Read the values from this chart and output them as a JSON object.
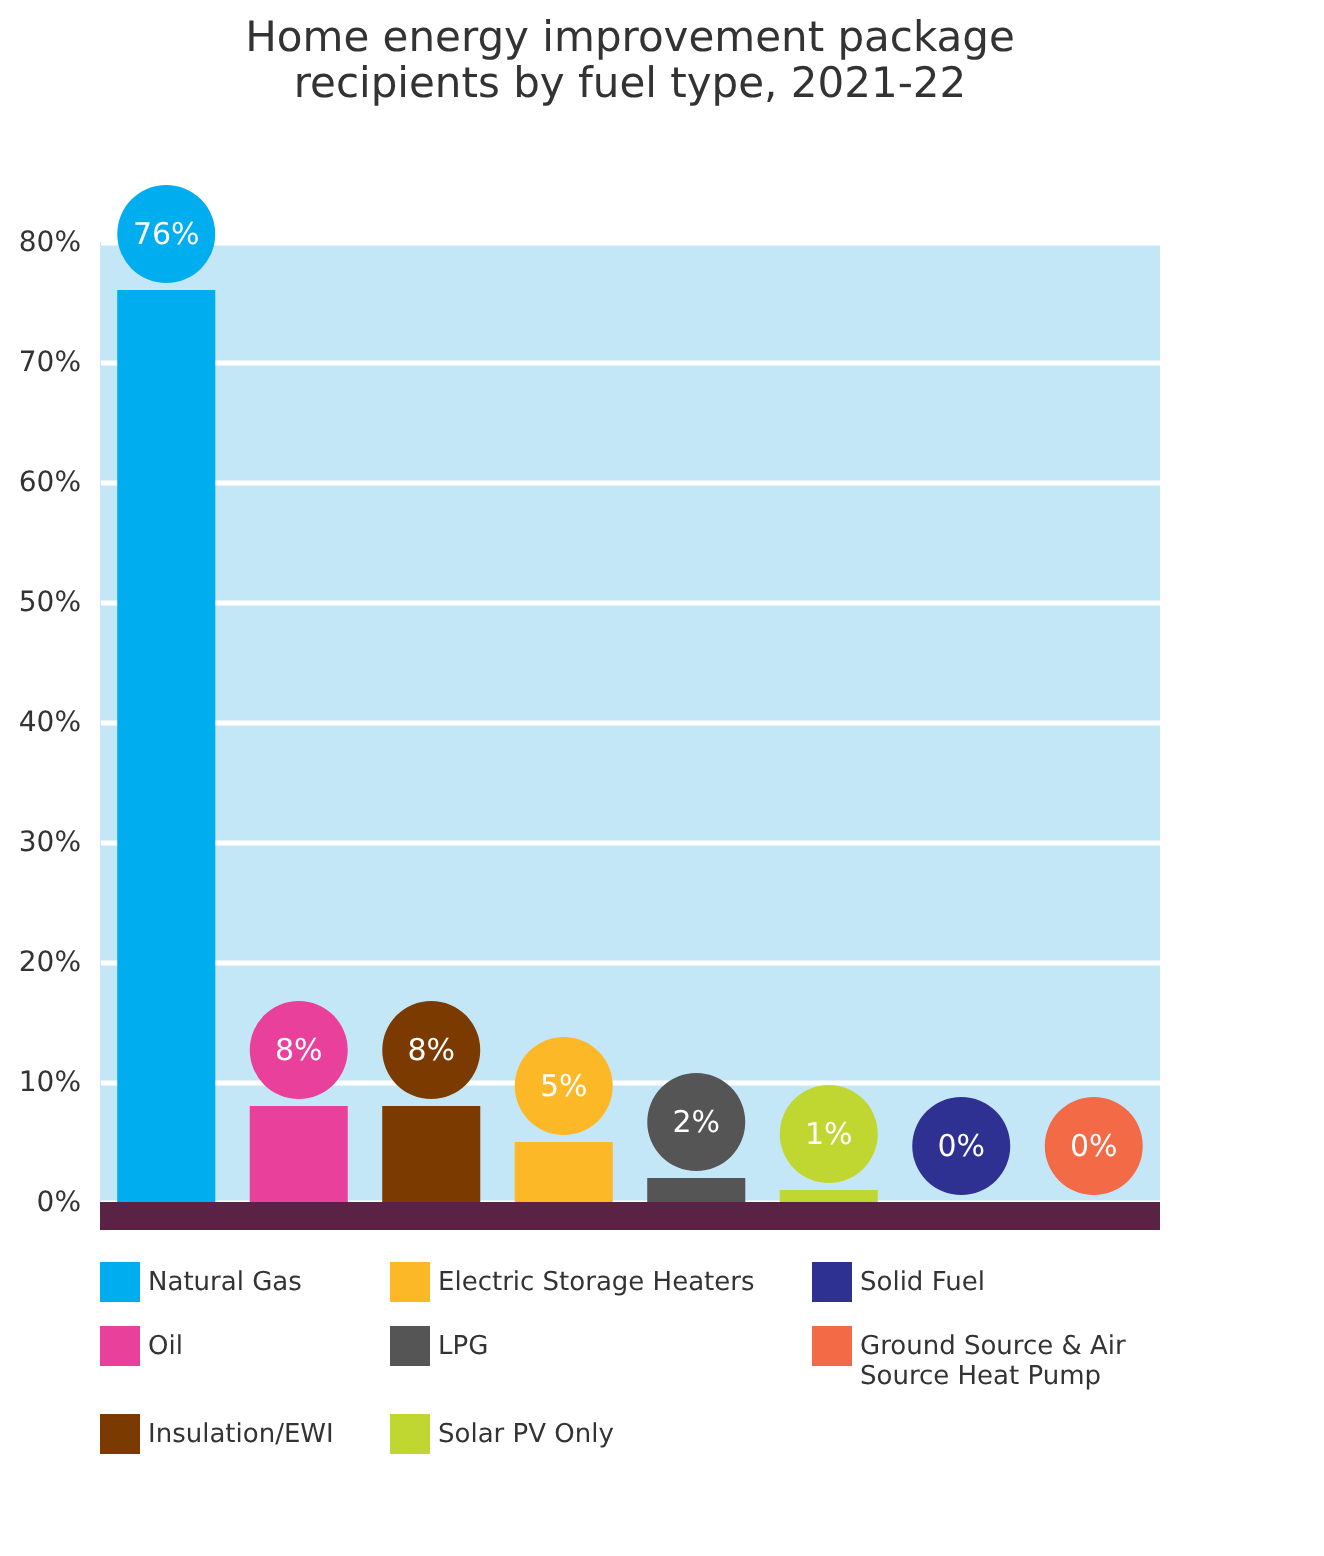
{
  "chart_data": {
    "type": "bar",
    "title": "Home energy improvement package recipients by fuel type, 2021-22",
    "categories": [
      null,
      null,
      null,
      null,
      null,
      null,
      null,
      null
    ],
    "series": [
      {
        "name": "Natural Gas",
        "color": "#00aeef",
        "values": [
          76,
          null,
          null,
          null,
          null,
          null,
          null,
          null
        ],
        "value_labels": [
          "76%",
          null,
          null,
          null,
          null,
          null,
          null,
          null
        ]
      },
      {
        "name": "Oil",
        "color": "#e8409b",
        "values": [
          null,
          8,
          null,
          null,
          null,
          null,
          null,
          null
        ],
        "value_labels": [
          null,
          "8%",
          null,
          null,
          null,
          null,
          null,
          null
        ]
      },
      {
        "name": "Insulation/EWI",
        "color": "#7b3a00",
        "values": [
          null,
          null,
          8,
          null,
          null,
          null,
          null,
          null
        ],
        "value_labels": [
          null,
          null,
          "8%",
          null,
          null,
          null,
          null,
          null
        ]
      },
      {
        "name": "Electric Storage Heaters",
        "color": "#fdb827",
        "values": [
          null,
          null,
          null,
          5,
          null,
          null,
          null,
          null
        ],
        "value_labels": [
          null,
          null,
          null,
          "5%",
          null,
          null,
          null,
          null
        ]
      },
      {
        "name": "LPG",
        "color": "#555555",
        "values": [
          null,
          null,
          null,
          null,
          2,
          null,
          null,
          null
        ],
        "value_labels": [
          null,
          null,
          null,
          null,
          "2%",
          null,
          null,
          null
        ]
      },
      {
        "name": "Solar PV Only",
        "color": "#bfd730",
        "values": [
          null,
          null,
          null,
          null,
          null,
          1,
          null,
          null
        ],
        "value_labels": [
          null,
          null,
          null,
          null,
          null,
          "1%",
          null,
          null
        ]
      },
      {
        "name": "Solid Fuel",
        "color": "#2e3192",
        "values": [
          null,
          null,
          null,
          null,
          null,
          null,
          0,
          null
        ],
        "value_labels": [
          null,
          null,
          null,
          null,
          null,
          null,
          "0%",
          null
        ]
      },
      {
        "name": "Ground Source & Air Source Heat Pump",
        "color": "#f26a46",
        "values": [
          null,
          null,
          null,
          null,
          null,
          null,
          null,
          0
        ],
        "value_labels": [
          null,
          null,
          null,
          null,
          null,
          null,
          null,
          "0%"
        ]
      }
    ],
    "ylim": [
      0,
      80
    ],
    "yticks": [
      {
        "value": 0,
        "label": "0%"
      },
      {
        "value": 10,
        "label": "10%"
      },
      {
        "value": 20,
        "label": "20%"
      },
      {
        "value": 30,
        "label": "30%"
      },
      {
        "value": 40,
        "label": "40%"
      },
      {
        "value": 50,
        "label": "50%"
      },
      {
        "value": 60,
        "label": "60%"
      },
      {
        "value": 70,
        "label": "70%"
      },
      {
        "value": 80,
        "label": "80%"
      }
    ],
    "grid": "y",
    "legend": "bottom",
    "tick_labels": "y"
  }
}
